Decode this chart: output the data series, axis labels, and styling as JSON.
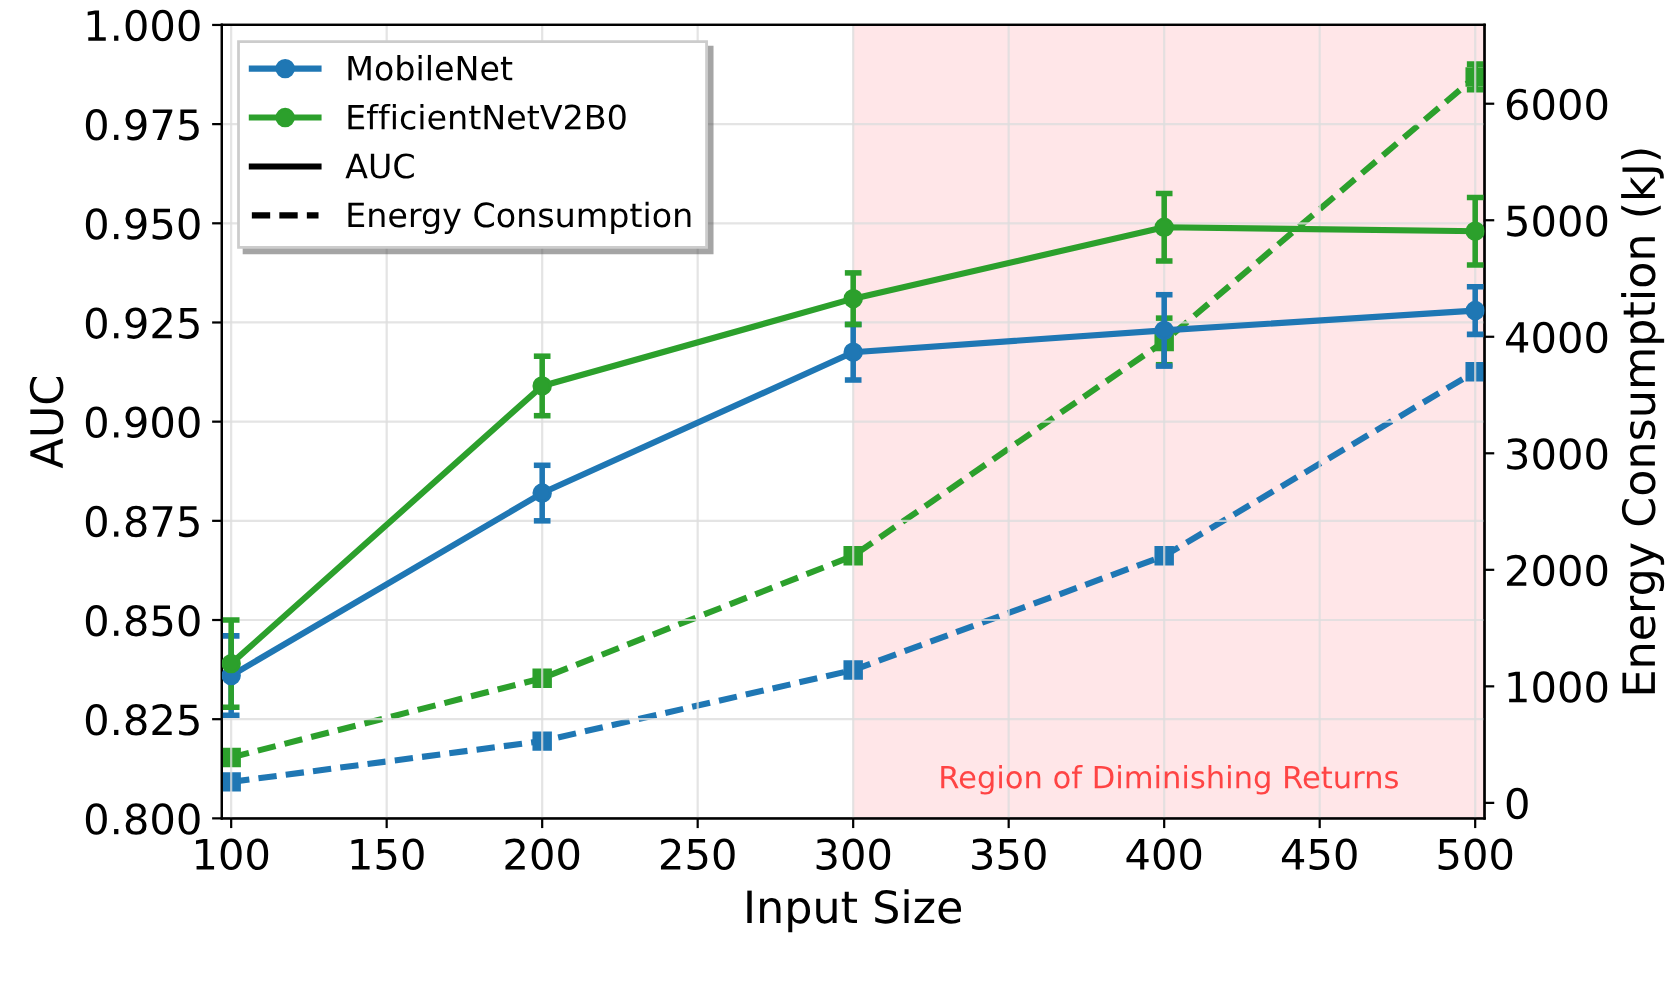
{
  "chart_data": {
    "type": "line",
    "xlabel": "Input Size",
    "ylabel": "AUC",
    "y2label": "Energy Consumption (kJ)",
    "x": [
      100,
      200,
      300,
      400,
      500
    ],
    "series": [
      {
        "name": "MobileNet",
        "color": "#1f77b4",
        "values": [
          0.836,
          0.882,
          0.9175,
          0.923,
          0.928
        ],
        "errors": [
          0.01,
          0.007,
          0.007,
          0.009,
          0.006
        ],
        "marker": "circle",
        "line_style": "solid"
      },
      {
        "name": "EfficientNetV2B0",
        "color": "#2ca02c",
        "values": [
          0.839,
          0.909,
          0.931,
          0.949,
          0.948
        ],
        "errors": [
          0.011,
          0.0075,
          0.0065,
          0.0085,
          0.0085
        ],
        "marker": "circle",
        "line_style": "solid"
      },
      {
        "color": "#1f77b4",
        "axis": "y2",
        "values": [
          180,
          530,
          1140,
          2120,
          3700
        ],
        "errors": [
          null,
          null,
          null,
          null,
          null
        ],
        "marker": "square",
        "line_style": "dashed"
      },
      {
        "color": "#2ca02c",
        "axis": "y2",
        "values": [
          390,
          1070,
          2120,
          3960,
          6230
        ],
        "errors": [
          null,
          null,
          null,
          200,
          110
        ],
        "marker": "square",
        "line_style": "dashed"
      },
      {
        "name": "AUC",
        "color": "#000000",
        "values": [
          null,
          null,
          null,
          null,
          null
        ],
        "marker": "none",
        "line_style": "solid"
      },
      {
        "name": "Energy Consumption",
        "color": "#000000",
        "values": [
          null,
          null,
          null,
          null,
          null
        ],
        "marker": "none",
        "line_style": "dashed"
      }
    ],
    "bands": [
      {
        "axis": "x",
        "from": 300,
        "to": 503,
        "label": "Region of Diminishing Returns",
        "color": "#ffe6e8"
      }
    ],
    "xlim": [
      97,
      503
    ],
    "xticks": [
      100,
      150,
      200,
      250,
      300,
      350,
      400,
      450,
      500
    ],
    "ylim": [
      0.8,
      1.0
    ],
    "yticks": [
      {
        "value": 0.8,
        "label": "0.800"
      },
      {
        "value": 0.825,
        "label": "0.825"
      },
      {
        "value": 0.85,
        "label": "0.850"
      },
      {
        "value": 0.875,
        "label": "0.875"
      },
      {
        "value": 0.9,
        "label": "0.900"
      },
      {
        "value": 0.925,
        "label": "0.925"
      },
      {
        "value": 0.95,
        "label": "0.950"
      },
      {
        "value": 0.975,
        "label": "0.975"
      },
      {
        "value": 1.0,
        "label": "1.000"
      }
    ],
    "y2lim": [
      -133,
      6676
    ],
    "y2ticks": [
      0,
      1000,
      2000,
      3000,
      4000,
      5000,
      6000
    ],
    "grid": true,
    "legend": "top left"
  }
}
